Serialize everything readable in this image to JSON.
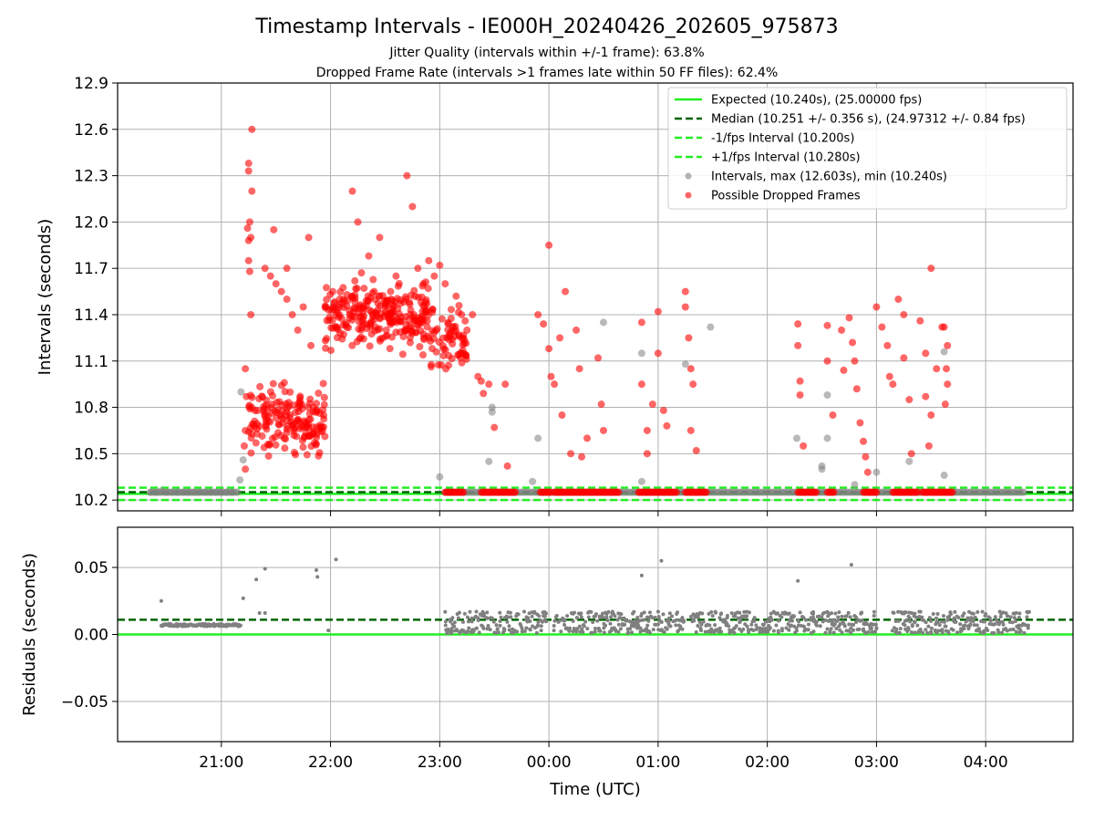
{
  "title": "Timestamp Intervals - IE000H_20240426_202605_975873",
  "subtitle1": "Jitter Quality (intervals within +/-1 frame): 63.8%",
  "subtitle2": "Dropped Frame Rate (intervals >1 frames late within 50 FF files): 62.4%",
  "colors": {
    "expected": "#22ee22",
    "median": "#006400",
    "interval_band": "#22ee22",
    "normal_points": "#808080",
    "dropped_points": "#ff0000",
    "grid": "#b0b0b0"
  },
  "chart_data": [
    {
      "type": "scatter",
      "panel": "top",
      "ylabel": "Intervals (seconds)",
      "xlabel": "",
      "x_unit": "hours since 00:00 UTC (negative = previous day)",
      "xlim": [
        -3.95,
        4.8
      ],
      "ylim": [
        10.13,
        12.9
      ],
      "yticks": [
        10.2,
        10.5,
        10.8,
        11.1,
        11.4,
        11.7,
        12.0,
        12.3,
        12.6,
        12.9
      ],
      "ytick_labels": [
        "10.2",
        "10.5",
        "10.8",
        "11.1",
        "11.4",
        "11.7",
        "12.0",
        "12.3",
        "12.6",
        "12.9"
      ],
      "xticks": [
        -3,
        -2,
        -1,
        0,
        1,
        2,
        3,
        4
      ],
      "grid": true,
      "legend_position": "top-right",
      "lines": [
        {
          "name": "Expected (10.240s), (25.00000 fps)",
          "y": 10.24,
          "style": "solid",
          "color": "#22ee22"
        },
        {
          "name": "Median (10.251 +/- 0.356 s), (24.97312 +/- 0.84 fps)",
          "y": 10.251,
          "style": "dashed",
          "color": "#006400"
        },
        {
          "name": "-1/fps Interval (10.200s)",
          "y": 10.2,
          "style": "dashed",
          "color": "#22ee22"
        },
        {
          "name": "+1/fps Interval (10.280s)",
          "y": 10.28,
          "style": "dashed",
          "color": "#22ee22"
        }
      ],
      "series": [
        {
          "name": "Intervals, max (12.603s), min (10.240s)",
          "color": "#808080",
          "points": [
            [
              -3.65,
              10.25
            ],
            [
              -3.6,
              10.25
            ],
            [
              -3.55,
              10.26
            ],
            [
              -3.5,
              10.25
            ],
            [
              -3.45,
              10.25
            ],
            [
              -3.4,
              10.25
            ],
            [
              -3.35,
              10.25
            ],
            [
              -3.3,
              10.25
            ],
            [
              -3.25,
              10.25
            ],
            [
              -3.2,
              10.25
            ],
            [
              -3.15,
              10.25
            ],
            [
              -3.1,
              10.25
            ],
            [
              -3.05,
              10.25
            ],
            [
              -3.0,
              10.25
            ],
            [
              -2.95,
              10.25
            ],
            [
              -2.9,
              10.25
            ],
            [
              -2.85,
              10.25
            ],
            [
              -2.82,
              10.9
            ],
            [
              -2.8,
              10.46
            ],
            [
              -2.83,
              10.33
            ],
            [
              -1.0,
              10.35
            ],
            [
              -0.52,
              10.8
            ],
            [
              -0.52,
              10.77
            ],
            [
              -0.55,
              10.45
            ],
            [
              -0.1,
              10.6
            ],
            [
              -0.15,
              10.32
            ],
            [
              0.5,
              11.35
            ],
            [
              0.85,
              11.15
            ],
            [
              0.85,
              10.32
            ],
            [
              1.25,
              11.08
            ],
            [
              1.48,
              11.32
            ],
            [
              2.27,
              10.6
            ],
            [
              2.5,
              10.4
            ],
            [
              2.5,
              10.42
            ],
            [
              2.55,
              10.6
            ],
            [
              2.55,
              10.88
            ],
            [
              2.8,
              10.3
            ],
            [
              3.0,
              10.38
            ],
            [
              3.3,
              10.45
            ],
            [
              3.62,
              11.16
            ],
            [
              3.62,
              10.36
            ]
          ]
        },
        {
          "name": "Possible Dropped Frames",
          "color": "#ff0000",
          "points": [
            [
              -2.75,
              12.38
            ],
            [
              -2.75,
              12.33
            ],
            [
              -2.72,
              12.6
            ],
            [
              -2.72,
              12.2
            ],
            [
              -2.74,
              12.0
            ],
            [
              -2.76,
              11.96
            ],
            [
              -2.73,
              11.9
            ],
            [
              -2.75,
              11.75
            ],
            [
              -2.74,
              11.68
            ],
            [
              -2.73,
              11.4
            ],
            [
              -2.75,
              11.88
            ],
            [
              -2.78,
              11.05
            ],
            [
              -2.78,
              10.65
            ],
            [
              -2.79,
              10.55
            ],
            [
              -2.78,
              10.4
            ],
            [
              -2.77,
              10.87
            ],
            [
              -2.6,
              11.7
            ],
            [
              -2.55,
              11.65
            ],
            [
              -2.5,
              11.6
            ],
            [
              -2.52,
              11.95
            ],
            [
              -2.45,
              11.55
            ],
            [
              -2.4,
              11.5
            ],
            [
              -2.4,
              11.7
            ],
            [
              -2.35,
              11.4
            ],
            [
              -2.3,
              11.3
            ],
            [
              -2.25,
              11.45
            ],
            [
              -2.2,
              11.9
            ],
            [
              -2.18,
              11.2
            ],
            [
              -1.98,
              11.55
            ],
            [
              -1.8,
              12.2
            ],
            [
              -1.75,
              12.0
            ],
            [
              -1.72,
              11.3
            ],
            [
              -1.65,
              11.78
            ],
            [
              -1.6,
              11.55
            ],
            [
              -1.55,
              11.9
            ],
            [
              -1.5,
              11.45
            ],
            [
              -1.45,
              11.55
            ],
            [
              -1.4,
              11.65
            ],
            [
              -1.3,
              12.3
            ],
            [
              -1.25,
              12.1
            ],
            [
              -1.2,
              11.7
            ],
            [
              -1.15,
              11.6
            ],
            [
              -1.1,
              11.75
            ],
            [
              -1.05,
              11.65
            ],
            [
              -1.0,
              11.72
            ],
            [
              -0.95,
              11.6
            ],
            [
              -0.85,
              11.52
            ],
            [
              -0.8,
              11.4
            ],
            [
              -0.75,
              11.3
            ],
            [
              -0.7,
              11.4
            ],
            [
              -0.65,
              11.0
            ],
            [
              -0.62,
              10.97
            ],
            [
              -0.6,
              10.89
            ],
            [
              -0.55,
              10.95
            ],
            [
              -0.5,
              10.67
            ],
            [
              -0.4,
              10.95
            ],
            [
              -0.38,
              10.42
            ],
            [
              -0.1,
              11.4
            ],
            [
              -0.05,
              11.34
            ],
            [
              0.0,
              11.85
            ],
            [
              0.0,
              11.18
            ],
            [
              0.02,
              11.0
            ],
            [
              0.05,
              10.95
            ],
            [
              0.1,
              11.25
            ],
            [
              0.12,
              10.75
            ],
            [
              0.15,
              11.55
            ],
            [
              0.2,
              10.5
            ],
            [
              0.25,
              11.3
            ],
            [
              0.28,
              11.05
            ],
            [
              0.3,
              10.48
            ],
            [
              0.35,
              10.6
            ],
            [
              0.45,
              11.12
            ],
            [
              0.5,
              10.65
            ],
            [
              0.48,
              10.82
            ],
            [
              0.85,
              11.35
            ],
            [
              0.85,
              10.95
            ],
            [
              0.9,
              10.65
            ],
            [
              0.9,
              10.5
            ],
            [
              0.95,
              10.82
            ],
            [
              1.0,
              11.42
            ],
            [
              1.0,
              11.15
            ],
            [
              1.05,
              10.78
            ],
            [
              1.08,
              10.68
            ],
            [
              1.25,
              11.55
            ],
            [
              1.25,
              11.45
            ],
            [
              1.28,
              11.25
            ],
            [
              1.3,
              11.05
            ],
            [
              1.32,
              10.95
            ],
            [
              1.3,
              10.65
            ],
            [
              1.35,
              10.52
            ],
            [
              2.28,
              11.34
            ],
            [
              2.28,
              11.2
            ],
            [
              2.3,
              10.97
            ],
            [
              2.3,
              10.88
            ],
            [
              2.33,
              10.55
            ],
            [
              2.55,
              11.33
            ],
            [
              2.55,
              11.1
            ],
            [
              2.6,
              10.75
            ],
            [
              2.68,
              11.3
            ],
            [
              2.7,
              11.04
            ],
            [
              2.75,
              11.38
            ],
            [
              2.78,
              11.22
            ],
            [
              2.8,
              11.1
            ],
            [
              2.82,
              10.92
            ],
            [
              2.85,
              10.7
            ],
            [
              2.88,
              10.58
            ],
            [
              2.9,
              10.48
            ],
            [
              2.92,
              10.38
            ],
            [
              3.0,
              11.45
            ],
            [
              3.05,
              11.32
            ],
            [
              3.1,
              11.2
            ],
            [
              3.12,
              11.0
            ],
            [
              3.15,
              10.95
            ],
            [
              3.2,
              11.5
            ],
            [
              3.25,
              11.4
            ],
            [
              3.25,
              11.12
            ],
            [
              3.3,
              10.85
            ],
            [
              3.32,
              10.5
            ],
            [
              3.4,
              11.36
            ],
            [
              3.45,
              11.15
            ],
            [
              3.45,
              10.87
            ],
            [
              3.48,
              10.55
            ],
            [
              3.5,
              11.7
            ],
            [
              3.5,
              10.75
            ],
            [
              3.55,
              11.05
            ],
            [
              3.6,
              11.32
            ],
            [
              3.62,
              11.32
            ],
            [
              3.65,
              11.2
            ],
            [
              3.64,
              11.05
            ],
            [
              3.65,
              10.95
            ],
            [
              3.63,
              10.82
            ]
          ]
        }
      ]
    },
    {
      "type": "scatter",
      "panel": "bottom",
      "ylabel": "Residuals (seconds)",
      "xlabel": "Time (UTC)",
      "x_unit": "hours since 00:00 UTC (negative = previous day)",
      "xlim": [
        -3.95,
        4.8
      ],
      "ylim": [
        -0.08,
        0.08
      ],
      "yticks": [
        -0.05,
        0.0,
        0.05
      ],
      "ytick_labels": [
        "−0.05",
        "0.00",
        "0.05"
      ],
      "xticks": [
        -3,
        -2,
        -1,
        0,
        1,
        2,
        3,
        4
      ],
      "xtick_labels": [
        "21:00",
        "22:00",
        "23:00",
        "00:00",
        "01:00",
        "02:00",
        "03:00",
        "04:00"
      ],
      "grid": true,
      "lines": [
        {
          "y": 0.0,
          "style": "solid",
          "color": "#22ee22"
        },
        {
          "y": 0.011,
          "style": "dashed",
          "color": "#006400"
        }
      ],
      "outliers": [
        [
          -3.55,
          0.025
        ],
        [
          -2.8,
          0.027
        ],
        [
          -2.68,
          0.041
        ],
        [
          -2.6,
          0.049
        ],
        [
          -2.65,
          0.016
        ],
        [
          -2.6,
          0.016
        ],
        [
          -2.13,
          0.048
        ],
        [
          -2.12,
          0.043
        ],
        [
          -2.02,
          0.003
        ],
        [
          -1.95,
          0.056
        ],
        [
          0.85,
          0.044
        ],
        [
          1.03,
          0.055
        ],
        [
          2.28,
          0.04
        ],
        [
          2.77,
          0.052
        ]
      ],
      "clusters": [
        {
          "x_start": -3.55,
          "x_end": -2.82,
          "y_min": 0.006,
          "y_max": 0.008
        },
        {
          "x_start": -0.95,
          "x_end": -0.02,
          "y_min": 0.001,
          "y_max": 0.017
        },
        {
          "x_start": 0.05,
          "x_end": 1.25,
          "y_min": 0.001,
          "y_max": 0.017
        },
        {
          "x_start": 1.3,
          "x_end": 2.88,
          "y_min": 0.001,
          "y_max": 0.017
        },
        {
          "x_start": 2.88,
          "x_end": 3.0,
          "y_min": 0.001,
          "y_max": 0.017
        },
        {
          "x_start": 3.15,
          "x_end": 4.4,
          "y_min": 0.001,
          "y_max": 0.017
        }
      ]
    }
  ]
}
